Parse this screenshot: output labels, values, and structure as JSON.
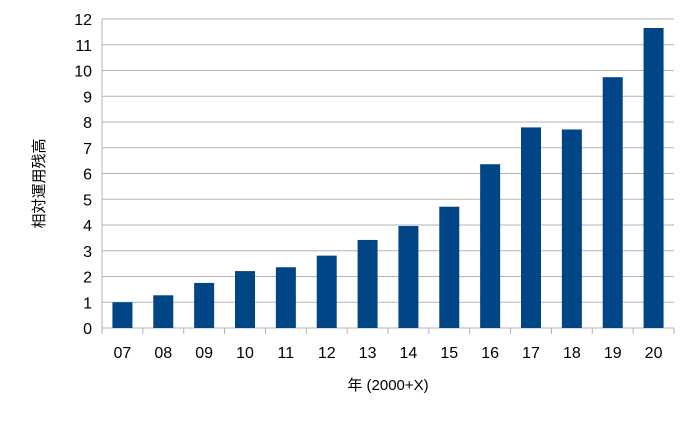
{
  "chart_data": {
    "type": "bar",
    "title": "",
    "xlabel": "年 (2000+X)",
    "ylabel": "相対運用残高",
    "categories": [
      "07",
      "08",
      "09",
      "10",
      "11",
      "12",
      "13",
      "14",
      "15",
      "16",
      "17",
      "18",
      "19",
      "20"
    ],
    "values": [
      1.0,
      1.27,
      1.75,
      2.21,
      2.36,
      2.81,
      3.42,
      3.96,
      4.71,
      6.36,
      7.79,
      7.71,
      9.74,
      11.65
    ],
    "ylim": [
      0,
      12
    ],
    "yticks": [
      "0",
      "1",
      "2",
      "3",
      "4",
      "5",
      "6",
      "7",
      "8",
      "9",
      "10",
      "11",
      "12"
    ],
    "grid": true,
    "legend": "none",
    "bar_color": "#004586",
    "grid_color": "#b3b3b3"
  }
}
